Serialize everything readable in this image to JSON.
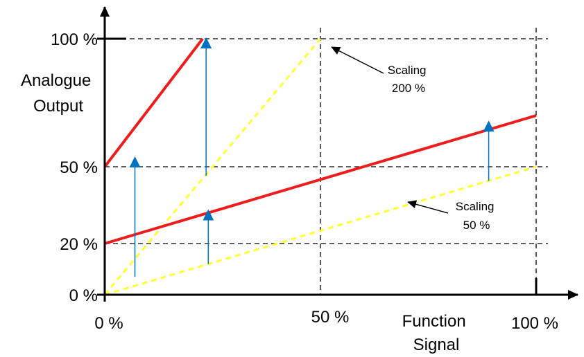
{
  "chart_data": {
    "type": "line",
    "title": "",
    "ylabel_lines": [
      "Analogue",
      "Output"
    ],
    "xlabel_lines": [
      "Function",
      "Signal"
    ],
    "x_ticks": [
      {
        "value": 0,
        "label": "0 %"
      },
      {
        "value": 50,
        "label": "50 %"
      },
      {
        "value": 100,
        "label": "100 %"
      }
    ],
    "y_ticks": [
      {
        "value": 0,
        "label": "0 %"
      },
      {
        "value": 20,
        "label": "20 %"
      },
      {
        "value": 50,
        "label": "50 %"
      },
      {
        "value": 100,
        "label": "100 %"
      }
    ],
    "xlim": [
      0,
      100
    ],
    "ylim": [
      0,
      100
    ],
    "grid": "dashed",
    "series": [
      {
        "style": "solid",
        "color": "#ee1c1c",
        "x": [
          0,
          22.7
        ],
        "y": [
          50,
          100
        ]
      },
      {
        "style": "solid",
        "color": "#ee1c1c",
        "x": [
          0,
          100
        ],
        "y": [
          20,
          70
        ]
      },
      {
        "style": "dashed",
        "color": "#ffff33",
        "x": [
          0,
          50
        ],
        "y": [
          0,
          100
        ]
      },
      {
        "style": "dashed",
        "color": "#ffff33",
        "x": [
          0,
          100
        ],
        "y": [
          0,
          50
        ]
      }
    ],
    "shift_arrows": [
      {
        "x": 7,
        "from": 7,
        "to": 53.5
      },
      {
        "x": 23.5,
        "from": 46.5,
        "to": 100
      },
      {
        "x": 24,
        "from": 12,
        "to": 32.8
      },
      {
        "x": 89,
        "from": 44.5,
        "to": 67.5
      }
    ],
    "annotations": [
      {
        "lines": [
          "Scaling",
          "200 %"
        ],
        "target": {
          "x": 50,
          "y": 100
        }
      },
      {
        "lines": [
          "Scaling",
          "50 %"
        ],
        "target": {
          "x": 69.5,
          "y": 36
        }
      }
    ]
  }
}
